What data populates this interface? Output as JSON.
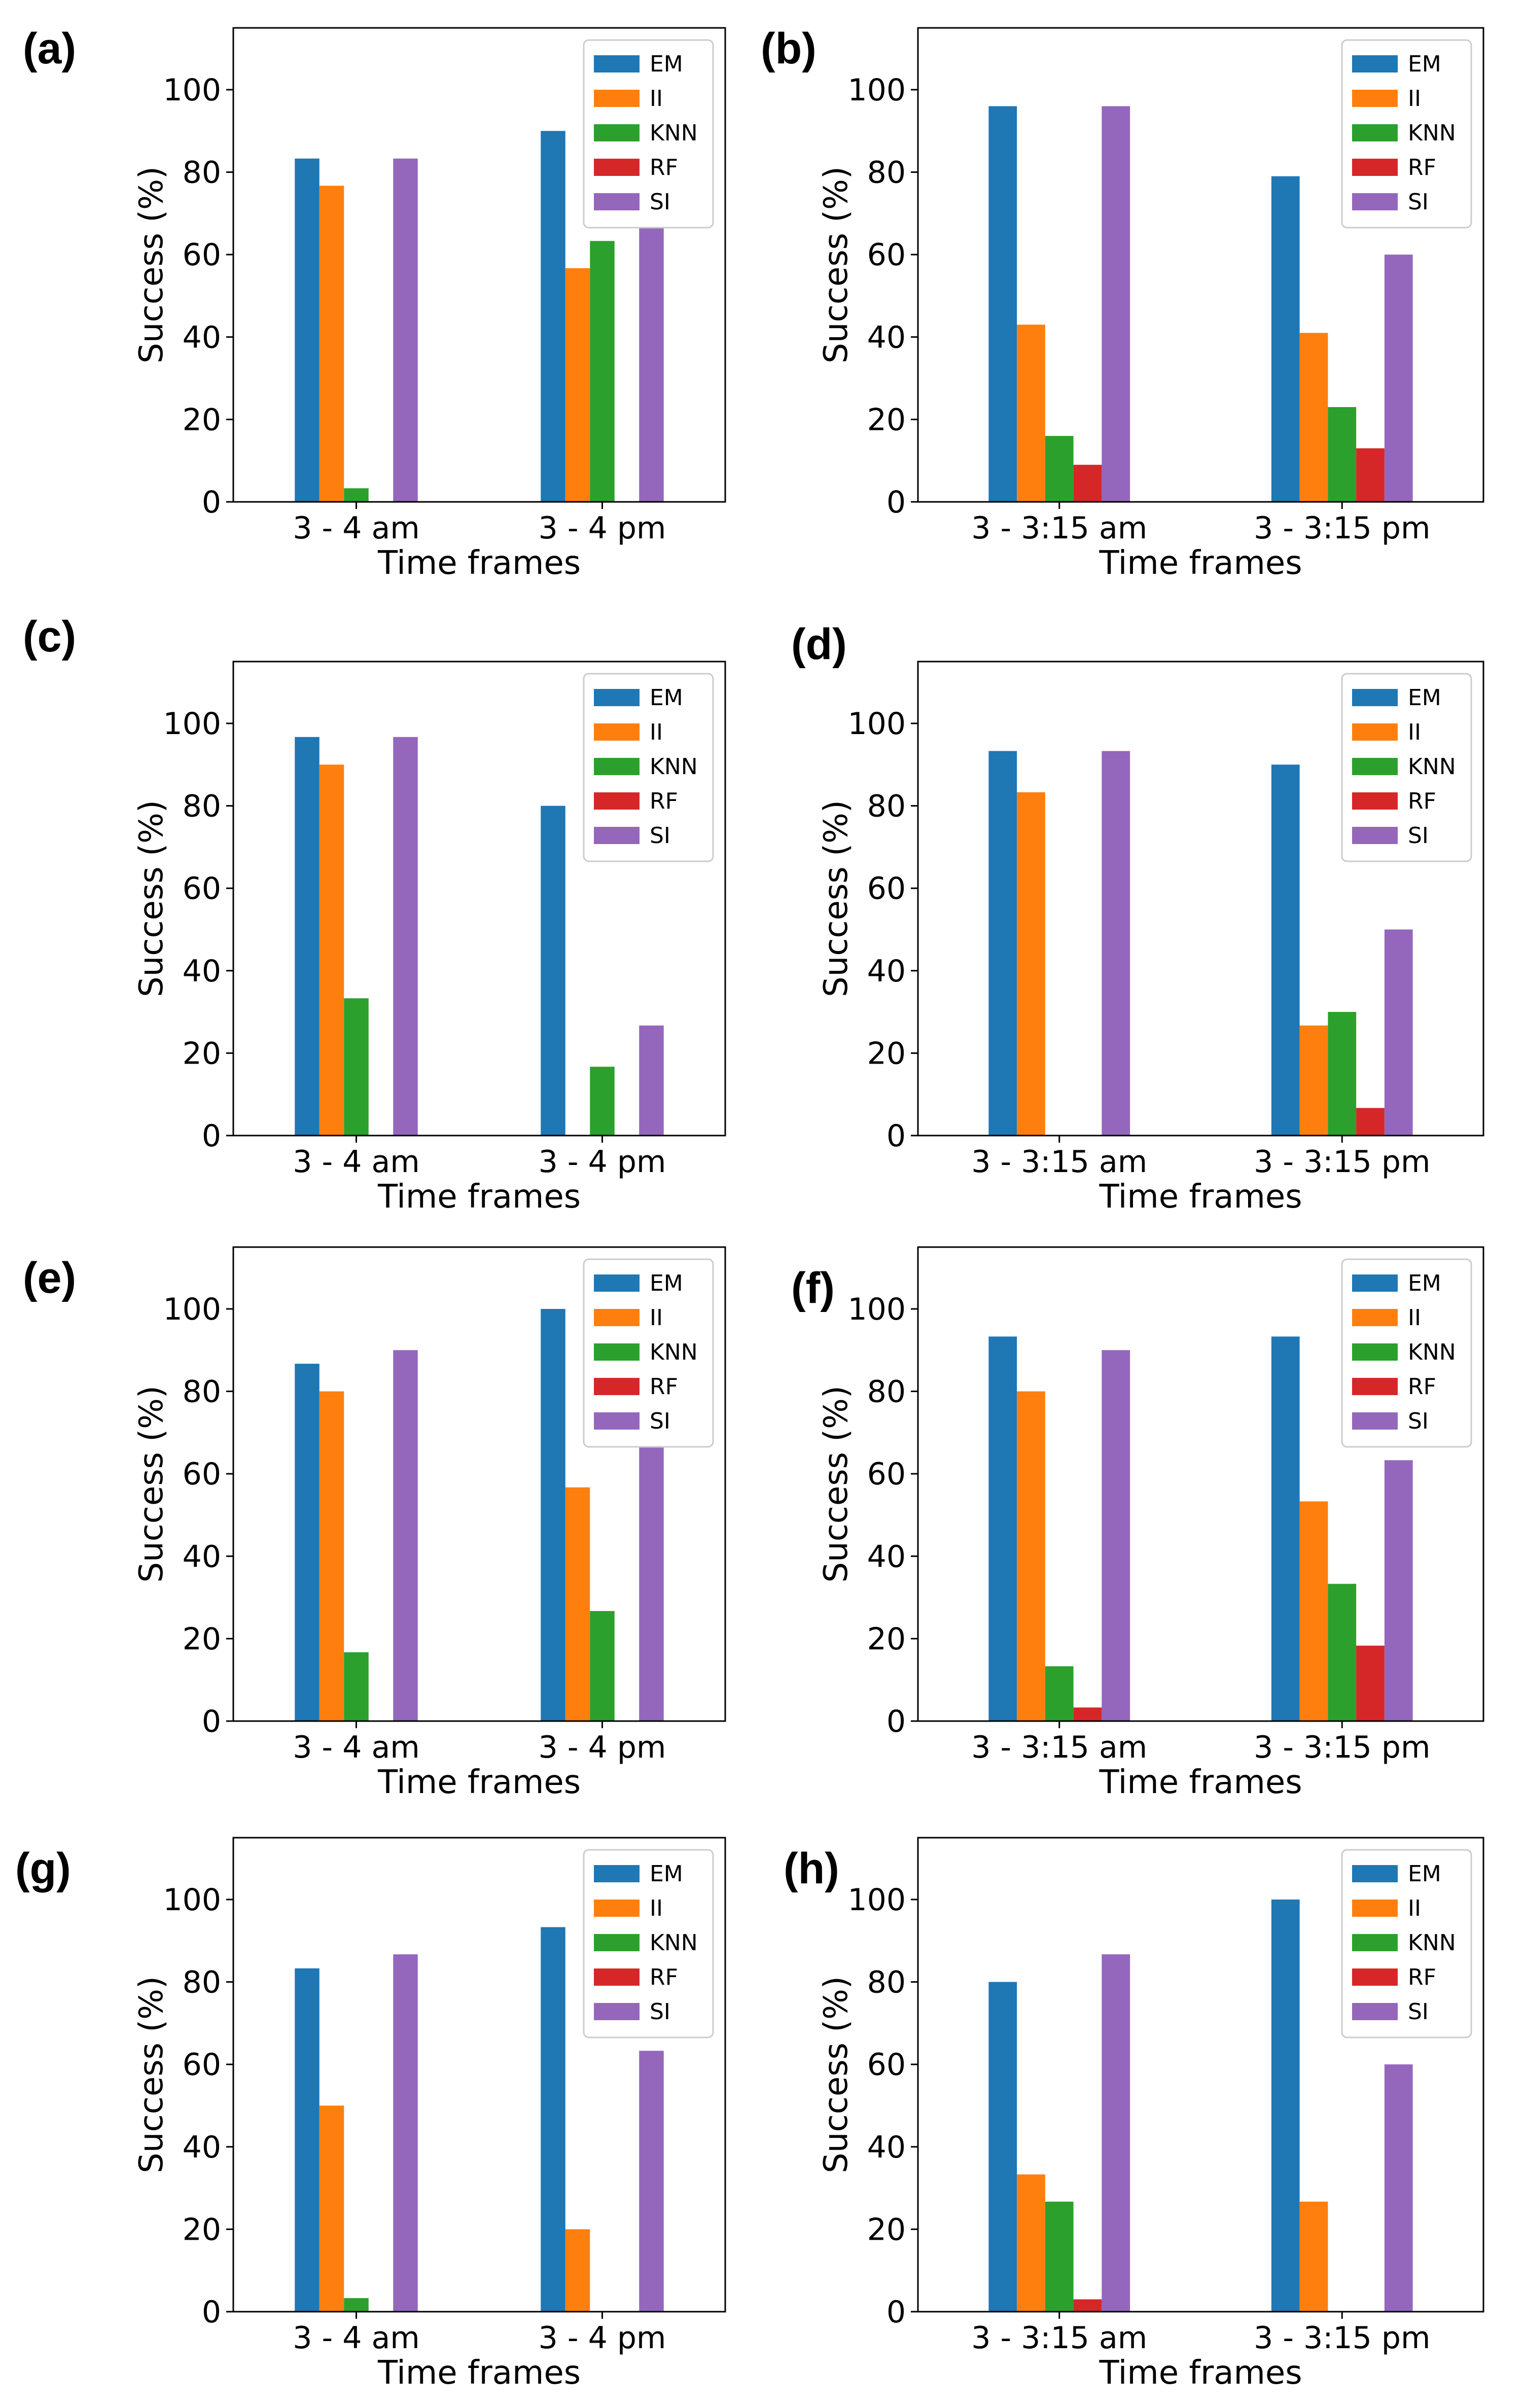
{
  "colors": {
    "EM": "#1f77b4",
    "II": "#ff7f0e",
    "KNN": "#2ca02c",
    "RF": "#d62728",
    "SI": "#9467bd"
  },
  "chart_data": [
    {
      "panel": "(a)",
      "type": "bar",
      "xlabel": "Time frames",
      "ylabel": "Success (%)",
      "ylim": [
        0,
        115
      ],
      "yticks": [
        0,
        20,
        40,
        60,
        80,
        100
      ],
      "legend": "top-right",
      "categories": [
        "3 - 4 am",
        "3 - 4 pm"
      ],
      "series": [
        {
          "name": "EM",
          "values": [
            83.3,
            90
          ]
        },
        {
          "name": "II",
          "values": [
            76.7,
            56.7
          ]
        },
        {
          "name": "KNN",
          "values": [
            3.3,
            63.3
          ]
        },
        {
          "name": "RF",
          "values": [
            0,
            0
          ]
        },
        {
          "name": "SI",
          "values": [
            83.3,
            66.7
          ]
        }
      ]
    },
    {
      "panel": "(b)",
      "type": "bar",
      "xlabel": "Time frames",
      "ylabel": "Success (%)",
      "ylim": [
        0,
        115
      ],
      "yticks": [
        0,
        20,
        40,
        60,
        80,
        100
      ],
      "legend": "top-right",
      "categories": [
        "3 - 3:15 am",
        "3 - 3:15 pm"
      ],
      "series": [
        {
          "name": "EM",
          "values": [
            96,
            79
          ]
        },
        {
          "name": "II",
          "values": [
            43,
            41
          ]
        },
        {
          "name": "KNN",
          "values": [
            16,
            23
          ]
        },
        {
          "name": "RF",
          "values": [
            9,
            13
          ]
        },
        {
          "name": "SI",
          "values": [
            96,
            60
          ]
        }
      ]
    },
    {
      "panel": "(c)",
      "type": "bar",
      "xlabel": "Time frames",
      "ylabel": "Success (%)",
      "ylim": [
        0,
        115
      ],
      "yticks": [
        0,
        20,
        40,
        60,
        80,
        100
      ],
      "legend": "top-right",
      "categories": [
        "3 - 4 am",
        "3 - 4 pm"
      ],
      "series": [
        {
          "name": "EM",
          "values": [
            96.7,
            80
          ]
        },
        {
          "name": "II",
          "values": [
            90,
            0
          ]
        },
        {
          "name": "KNN",
          "values": [
            33.3,
            16.7
          ]
        },
        {
          "name": "RF",
          "values": [
            0,
            0
          ]
        },
        {
          "name": "SI",
          "values": [
            96.7,
            26.7
          ]
        }
      ]
    },
    {
      "panel": "(d)",
      "type": "bar",
      "xlabel": "Time frames",
      "ylabel": "Success (%)",
      "ylim": [
        0,
        115
      ],
      "yticks": [
        0,
        20,
        40,
        60,
        80,
        100
      ],
      "legend": "top-right",
      "categories": [
        "3 - 3:15 am",
        "3 - 3:15 pm"
      ],
      "series": [
        {
          "name": "EM",
          "values": [
            93.3,
            90
          ]
        },
        {
          "name": "II",
          "values": [
            83.3,
            26.7
          ]
        },
        {
          "name": "KNN",
          "values": [
            0,
            30
          ]
        },
        {
          "name": "RF",
          "values": [
            0,
            6.7
          ]
        },
        {
          "name": "SI",
          "values": [
            93.3,
            50
          ]
        }
      ]
    },
    {
      "panel": "(e)",
      "type": "bar",
      "xlabel": "Time frames",
      "ylabel": "Success (%)",
      "ylim": [
        0,
        115
      ],
      "yticks": [
        0,
        20,
        40,
        60,
        80,
        100
      ],
      "legend": "top-right",
      "categories": [
        "3 - 4 am",
        "3 - 4 pm"
      ],
      "series": [
        {
          "name": "EM",
          "values": [
            86.7,
            100
          ]
        },
        {
          "name": "II",
          "values": [
            80,
            56.7
          ]
        },
        {
          "name": "KNN",
          "values": [
            16.7,
            26.7
          ]
        },
        {
          "name": "RF",
          "values": [
            0,
            0
          ]
        },
        {
          "name": "SI",
          "values": [
            90,
            66.7
          ]
        }
      ]
    },
    {
      "panel": "(f)",
      "type": "bar",
      "xlabel": "Time frames",
      "ylabel": "Success (%)",
      "ylim": [
        0,
        115
      ],
      "yticks": [
        0,
        20,
        40,
        60,
        80,
        100
      ],
      "legend": "top-right",
      "categories": [
        "3 - 3:15 am",
        "3 - 3:15 pm"
      ],
      "series": [
        {
          "name": "EM",
          "values": [
            93.3,
            93.3
          ]
        },
        {
          "name": "II",
          "values": [
            80,
            53.3
          ]
        },
        {
          "name": "KNN",
          "values": [
            13.3,
            33.3
          ]
        },
        {
          "name": "RF",
          "values": [
            3.3,
            18.3
          ]
        },
        {
          "name": "SI",
          "values": [
            90,
            63.3
          ]
        }
      ]
    },
    {
      "panel": "(g)",
      "type": "bar",
      "xlabel": "Time frames",
      "ylabel": "Success (%)",
      "ylim": [
        0,
        115
      ],
      "yticks": [
        0,
        20,
        40,
        60,
        80,
        100
      ],
      "legend": "top-right",
      "categories": [
        "3 - 4 am",
        "3 - 4 pm"
      ],
      "series": [
        {
          "name": "EM",
          "values": [
            83.3,
            93.3
          ]
        },
        {
          "name": "II",
          "values": [
            50,
            20
          ]
        },
        {
          "name": "KNN",
          "values": [
            3.3,
            0
          ]
        },
        {
          "name": "RF",
          "values": [
            0,
            0
          ]
        },
        {
          "name": "SI",
          "values": [
            86.7,
            63.3
          ]
        }
      ]
    },
    {
      "panel": "(h)",
      "type": "bar",
      "xlabel": "Time frames",
      "ylabel": "Success (%)",
      "ylim": [
        0,
        115
      ],
      "yticks": [
        0,
        20,
        40,
        60,
        80,
        100
      ],
      "legend": "top-right",
      "categories": [
        "3 - 3:15 am",
        "3 - 3:15 pm"
      ],
      "series": [
        {
          "name": "EM",
          "values": [
            80,
            100
          ]
        },
        {
          "name": "II",
          "values": [
            33.3,
            26.7
          ]
        },
        {
          "name": "KNN",
          "values": [
            26.7,
            0
          ]
        },
        {
          "name": "RF",
          "values": [
            3,
            0
          ]
        },
        {
          "name": "SI",
          "values": [
            86.7,
            60
          ]
        }
      ]
    }
  ]
}
